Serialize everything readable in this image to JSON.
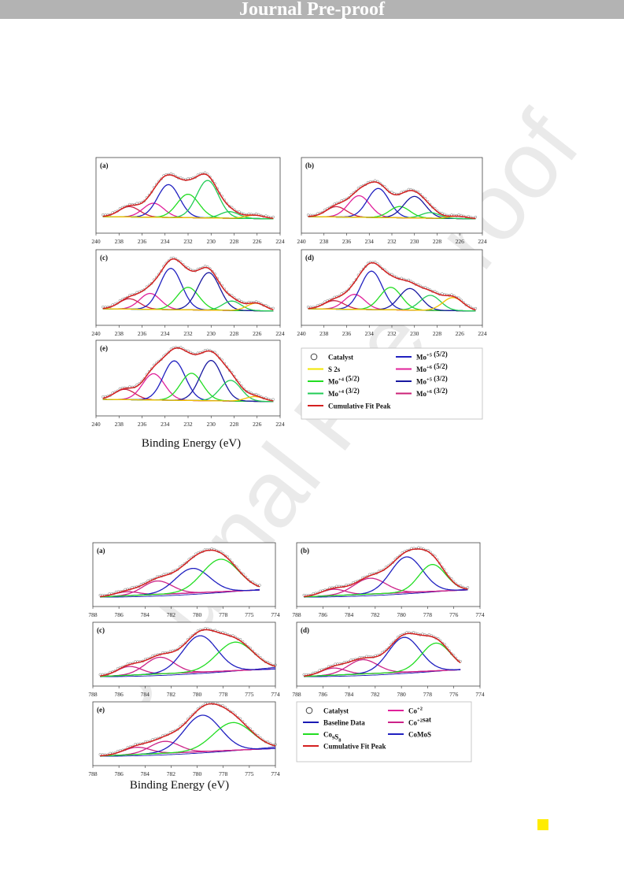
{
  "banner": "Journal Pre-proof",
  "watermark": "Journal Pre-proof",
  "figures": [
    {
      "id": "mo3d",
      "xlabel": "Binding Energy (eV)",
      "ticks": [
        "240",
        "238",
        "236",
        "234",
        "232",
        "230",
        "228",
        "226",
        "224"
      ],
      "xrange": [
        240,
        224
      ],
      "panels": [
        {
          "label": "(a)",
          "peaks": [
            {
              "c": 237.1,
              "h": 0.22,
              "w": 0.9,
              "s": "mo_b"
            },
            {
              "c": 235.0,
              "h": 0.3,
              "w": 0.9,
              "s": "mo6_52"
            },
            {
              "c": 233.7,
              "h": 0.7,
              "w": 0.95,
              "s": "mo5_52"
            },
            {
              "c": 232.0,
              "h": 0.5,
              "w": 0.95,
              "s": "mo4_52"
            },
            {
              "c": 230.3,
              "h": 0.8,
              "w": 0.95,
              "s": "mo4_32"
            },
            {
              "c": 228.4,
              "h": 0.14,
              "w": 0.8,
              "s": "mo4_32"
            },
            {
              "c": 226.2,
              "h": 0.07,
              "w": 0.8,
              "s": "s2s"
            }
          ]
        },
        {
          "label": "(b)",
          "peaks": [
            {
              "c": 236.9,
              "h": 0.22,
              "w": 0.9,
              "s": "mo_b"
            },
            {
              "c": 234.9,
              "h": 0.46,
              "w": 0.95,
              "s": "mo6_52"
            },
            {
              "c": 233.2,
              "h": 0.62,
              "w": 0.95,
              "s": "mo5_52"
            },
            {
              "c": 231.3,
              "h": 0.24,
              "w": 0.9,
              "s": "mo4_52"
            },
            {
              "c": 230.0,
              "h": 0.46,
              "w": 0.95,
              "s": "mo5_32"
            },
            {
              "c": 228.6,
              "h": 0.12,
              "w": 0.8,
              "s": "mo4_32"
            },
            {
              "c": 226.2,
              "h": 0.05,
              "w": 0.8,
              "s": "s2s"
            }
          ]
        },
        {
          "label": "(c)",
          "peaks": [
            {
              "c": 237.1,
              "h": 0.22,
              "w": 0.9,
              "s": "mo_b"
            },
            {
              "c": 235.3,
              "h": 0.34,
              "w": 0.9,
              "s": "mo6_52"
            },
            {
              "c": 233.5,
              "h": 0.88,
              "w": 0.95,
              "s": "mo5_52"
            },
            {
              "c": 232.0,
              "h": 0.48,
              "w": 0.95,
              "s": "mo4_52"
            },
            {
              "c": 230.2,
              "h": 0.8,
              "w": 0.95,
              "s": "mo5_32"
            },
            {
              "c": 228.2,
              "h": 0.2,
              "w": 0.8,
              "s": "mo4_32"
            },
            {
              "c": 226.1,
              "h": 0.16,
              "w": 0.8,
              "s": "s2s"
            }
          ]
        },
        {
          "label": "(d)",
          "peaks": [
            {
              "c": 237.1,
              "h": 0.18,
              "w": 0.9,
              "s": "mo_b"
            },
            {
              "c": 235.3,
              "h": 0.32,
              "w": 0.9,
              "s": "mo6_52"
            },
            {
              "c": 233.8,
              "h": 0.82,
              "w": 0.95,
              "s": "mo5_52"
            },
            {
              "c": 232.1,
              "h": 0.48,
              "w": 0.95,
              "s": "mo4_52"
            },
            {
              "c": 230.4,
              "h": 0.46,
              "w": 0.95,
              "s": "mo5_32"
            },
            {
              "c": 228.6,
              "h": 0.32,
              "w": 0.9,
              "s": "mo4_32"
            },
            {
              "c": 226.6,
              "h": 0.28,
              "w": 0.9,
              "s": "s2s"
            }
          ]
        },
        {
          "label": "(e)",
          "peaks": [
            {
              "c": 237.5,
              "h": 0.22,
              "w": 0.9,
              "s": "mo_b"
            },
            {
              "c": 235.0,
              "h": 0.56,
              "w": 0.95,
              "s": "mo6_52"
            },
            {
              "c": 233.2,
              "h": 0.84,
              "w": 0.95,
              "s": "mo5_52"
            },
            {
              "c": 231.7,
              "h": 0.58,
              "w": 0.95,
              "s": "mo4_52"
            },
            {
              "c": 230.0,
              "h": 0.86,
              "w": 0.95,
              "s": "mo5_32"
            },
            {
              "c": 228.3,
              "h": 0.44,
              "w": 0.9,
              "s": "mo4_32"
            },
            {
              "c": 226.2,
              "h": 0.1,
              "w": 0.8,
              "s": "s2s"
            }
          ]
        }
      ],
      "legend": {
        "items": [
          {
            "key": "catalyst",
            "label": "Catalyst",
            "sup": "",
            "rest": "",
            "color": "#444444",
            "marker": "circle"
          },
          {
            "key": "mo5_52",
            "label": "Mo",
            "sup": "+5",
            "rest": " (5/2)",
            "color": "#2020c0",
            "marker": "line"
          },
          {
            "key": "s2s",
            "label": "S 2s",
            "sup": "",
            "rest": "",
            "color": "#f2e600",
            "marker": "line"
          },
          {
            "key": "mo6_52",
            "label": "Mo",
            "sup": "+6",
            "rest": " (5/2)",
            "color": "#e0209a",
            "marker": "line"
          },
          {
            "key": "mo4_52",
            "label": "Mo",
            "sup": "+4",
            "rest": " (5/2)",
            "color": "#22dd22",
            "marker": "line"
          },
          {
            "key": "mo5_32",
            "label": "Mo",
            "sup": "+5",
            "rest": " (3/2)",
            "color": "#1818a0",
            "marker": "line"
          },
          {
            "key": "mo4_32",
            "label": "Mo",
            "sup": "+4",
            "rest": " (3/2)",
            "color": "#22cc55",
            "marker": "line"
          },
          {
            "key": "mo6_32",
            "label": "Mo",
            "sup": "+6",
            "rest": " (3/2)",
            "color": "#cc2277",
            "marker": "line"
          },
          {
            "key": "fit",
            "label": "Cumulative Fit Peak",
            "sup": "",
            "rest": "",
            "color": "#d42020",
            "marker": "line"
          }
        ]
      }
    },
    {
      "id": "co2p",
      "xlabel": "Binding Energy (eV)",
      "ticks": [
        "788",
        "786",
        "784",
        "782",
        "780",
        "778",
        "776",
        "774"
      ],
      "xrange": [
        789,
        774
      ],
      "panel_ticks": {
        "a": [
          "788",
          "786",
          "784",
          "782",
          "780",
          "778",
          "775",
          "774"
        ],
        "c": [
          "788",
          "786",
          "784",
          "782",
          "780",
          "778",
          "775",
          "774"
        ],
        "e": [
          "788",
          "786",
          "784",
          "782",
          "780",
          "778",
          "775",
          "774"
        ]
      },
      "panels": [
        {
          "label": "(a)",
          "end": 775.3,
          "peaks": [
            {
              "c": 786.2,
              "h": 0.1,
              "w": 1.0,
              "s": "cosat"
            },
            {
              "c": 783.7,
              "h": 0.34,
              "w": 1.2,
              "s": "cosat"
            },
            {
              "c": 780.8,
              "h": 0.62,
              "w": 1.4,
              "s": "comos"
            },
            {
              "c": 778.5,
              "h": 0.82,
              "w": 1.5,
              "s": "co9s8"
            }
          ]
        },
        {
          "label": "(b)",
          "end": 775.0,
          "peaks": [
            {
              "c": 786.0,
              "h": 0.16,
              "w": 1.0,
              "s": "cosat"
            },
            {
              "c": 783.0,
              "h": 0.4,
              "w": 1.3,
              "s": "cosat"
            },
            {
              "c": 780.0,
              "h": 0.9,
              "w": 1.3,
              "s": "comos"
            },
            {
              "c": 777.9,
              "h": 0.68,
              "w": 1.1,
              "s": "co9s8"
            }
          ]
        },
        {
          "label": "(c)",
          "end": 774.0,
          "peaks": [
            {
              "c": 786.0,
              "h": 0.22,
              "w": 1.0,
              "s": "cosat"
            },
            {
              "c": 783.5,
              "h": 0.42,
              "w": 1.2,
              "s": "cosat"
            },
            {
              "c": 780.2,
              "h": 0.92,
              "w": 1.4,
              "s": "comos"
            },
            {
              "c": 777.3,
              "h": 0.72,
              "w": 1.5,
              "s": "co9s8"
            }
          ]
        },
        {
          "label": "(d)",
          "end": 775.6,
          "peaks": [
            {
              "c": 786.0,
              "h": 0.18,
              "w": 1.0,
              "s": "cosat"
            },
            {
              "c": 783.6,
              "h": 0.36,
              "w": 1.2,
              "s": "cosat"
            },
            {
              "c": 780.2,
              "h": 0.88,
              "w": 1.3,
              "s": "comos"
            },
            {
              "c": 777.6,
              "h": 0.7,
              "w": 1.2,
              "s": "co9s8"
            }
          ]
        },
        {
          "label": "(e)",
          "end": 774.0,
          "peaks": [
            {
              "c": 785.4,
              "h": 0.18,
              "w": 1.1,
              "s": "cosat"
            },
            {
              "c": 783.1,
              "h": 0.3,
              "w": 1.2,
              "s": "cosat"
            },
            {
              "c": 780.0,
              "h": 0.92,
              "w": 1.5,
              "s": "comos"
            },
            {
              "c": 777.5,
              "h": 0.7,
              "w": 1.6,
              "s": "co9s8"
            }
          ]
        }
      ],
      "legend": {
        "items": [
          {
            "key": "catalyst",
            "label": "Catalyst",
            "sub": "",
            "sup": "",
            "rest": "",
            "color": "#444444",
            "marker": "circle"
          },
          {
            "key": "co2",
            "label": "Co",
            "sub": "",
            "sup": "+2",
            "rest": "",
            "color": "#e0209a",
            "marker": "line"
          },
          {
            "key": "baseline",
            "label": "Baseline Data",
            "sub": "",
            "sup": "",
            "rest": "",
            "color": "#1a1ab4",
            "marker": "line"
          },
          {
            "key": "cosat",
            "label": "Co",
            "sub": "",
            "sup": "+2",
            "rest": "sat",
            "color": "#cc2288",
            "marker": "line"
          },
          {
            "key": "co9s8",
            "label": "Co",
            "sub": "9",
            "sup": "",
            "rest": "S",
            "sub2": "8",
            "color": "#22dd22",
            "marker": "line"
          },
          {
            "key": "comos",
            "label": "CoMoS",
            "sub": "",
            "sup": "",
            "rest": "",
            "color": "#2020c0",
            "marker": "line"
          },
          {
            "key": "fit",
            "label": "Cumulative Fit Peak",
            "sub": "",
            "sup": "",
            "rest": "",
            "color": "#d42020",
            "marker": "line"
          }
        ]
      }
    }
  ],
  "colors": {
    "mo_b": "#cc2244",
    "mo6_52": "#e0209a",
    "mo5_52": "#2020c0",
    "mo4_52": "#22dd22",
    "mo5_32": "#1818a0",
    "mo4_32": "#22cc55",
    "s2s": "#f2c000",
    "fit": "#d42020",
    "data": "#777777",
    "baseline_mo": "#d02080",
    "baseline_co": "#cc2288",
    "cosat": "#cc2288",
    "comos": "#2020c0",
    "co9s8": "#22dd22",
    "baseline_blue": "#1a1ab4"
  }
}
